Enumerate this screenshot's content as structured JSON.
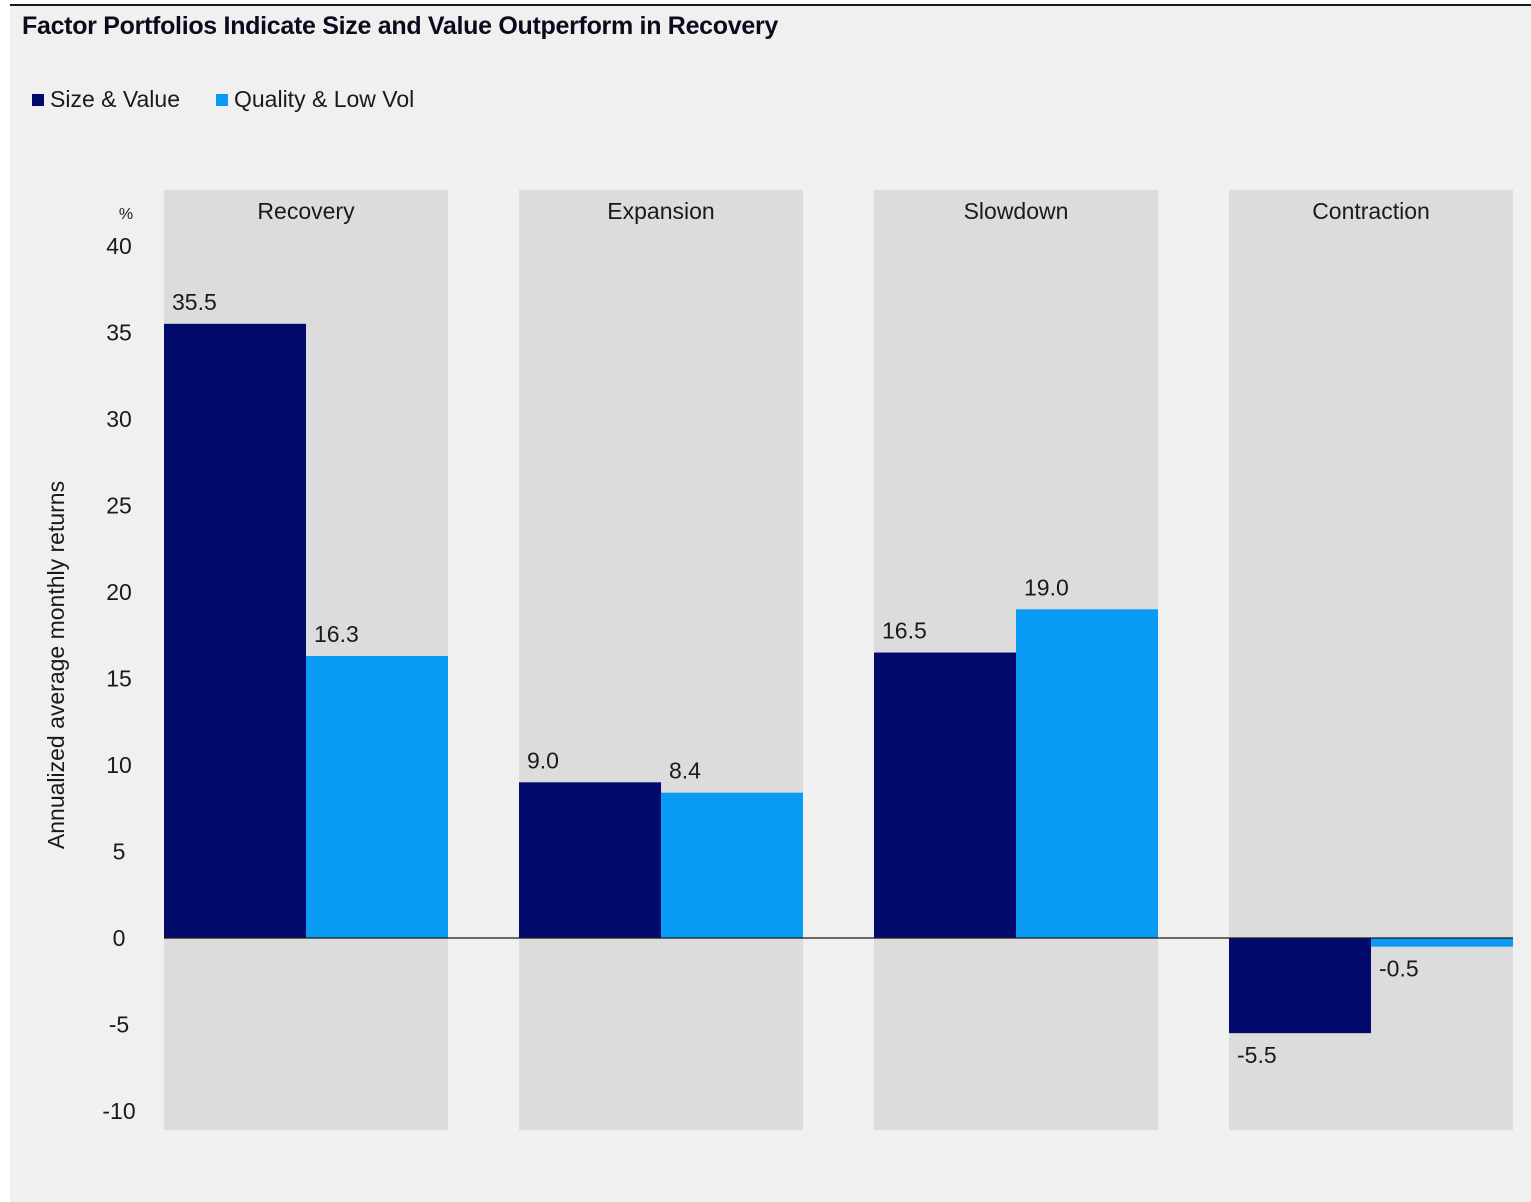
{
  "chart_data": {
    "type": "bar",
    "title": "Factor Portfolios Indicate Size and Value Outperform in Recovery",
    "ylabel": "Annualized average monthly returns",
    "yunit": "%",
    "xlabel": "",
    "categories": [
      "Recovery",
      "Expansion",
      "Slowdown",
      "Contraction"
    ],
    "series": [
      {
        "name": "Size & Value",
        "color": "#020b6b",
        "values": [
          35.5,
          9.0,
          16.5,
          -5.5
        ],
        "labels": [
          "35.5",
          "9.0",
          "16.5",
          "-5.5"
        ]
      },
      {
        "name": "Quality & Low Vol",
        "color": "#0a9bf5",
        "values": [
          16.3,
          8.4,
          19.0,
          -0.5
        ],
        "labels": [
          "16.3",
          "8.4",
          "19.0",
          "-0.5"
        ]
      }
    ],
    "ylim": [
      -10,
      40
    ],
    "yticks": [
      40,
      35,
      30,
      25,
      20,
      15,
      10,
      5,
      0,
      -5,
      -10
    ],
    "legend_position": "top-left",
    "grid": false,
    "band_color": "#dcdcdc"
  }
}
